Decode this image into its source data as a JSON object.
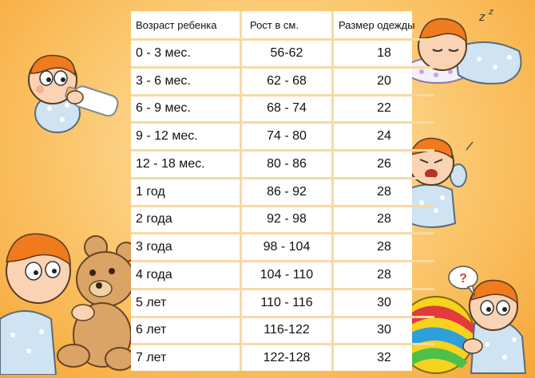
{
  "table": {
    "headers": [
      "Возраст ребенка",
      "Рост в см.",
      "Размер одежды"
    ],
    "rows": [
      [
        "0 - 3 мес.",
        "56-62",
        "18"
      ],
      [
        "3 - 6 мес.",
        "62 - 68",
        "20"
      ],
      [
        "6 - 9 мес.",
        "68 - 74",
        "22"
      ],
      [
        "9 - 12 мес.",
        "74 - 80",
        "24"
      ],
      [
        "12 - 18 мес.",
        "80 - 86",
        "26"
      ],
      [
        " 1 год",
        "86 - 92",
        "28"
      ],
      [
        " 2 года",
        "92 - 98",
        "28"
      ],
      [
        "3 года",
        "98 - 104",
        "28"
      ],
      [
        "4 года",
        "104 - 110",
        "28"
      ],
      [
        "5 лет",
        "110 - 116",
        "30"
      ],
      [
        "6 лет",
        "116-122",
        "30"
      ],
      [
        "7 лет",
        "122-128",
        "32"
      ]
    ]
  },
  "illustrations": {
    "baby_bottle": "baby-with-bottle-illustration",
    "baby_sleeping": "sleeping-baby-illustration",
    "baby_crying": "crying-baby-illustration",
    "baby_teddy": "baby-with-teddy-bear-illustration",
    "baby_ball": "baby-with-ball-illustration",
    "question_mark": "?"
  },
  "colors": {
    "background_center": "#fde7b8",
    "background_edge": "#f6a636",
    "grid_lines": "#f8d9a4",
    "onesie_blue": "#cfe3f2",
    "skin": "#f9d3b4",
    "hair": "#f07a1e"
  }
}
